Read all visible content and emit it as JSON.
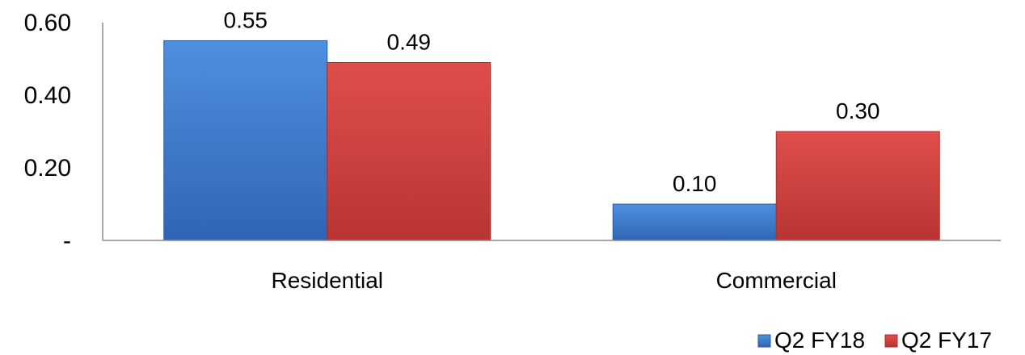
{
  "chart_data": {
    "type": "bar",
    "categories": [
      "Residential",
      "Commercial"
    ],
    "series": [
      {
        "name": "Q2 FY18",
        "values": [
          0.55,
          0.1
        ],
        "color": "#3f7fd0"
      },
      {
        "name": "Q2 FY17",
        "values": [
          0.49,
          0.3
        ],
        "color": "#d84442"
      }
    ],
    "ylim": [
      0,
      0.6
    ],
    "yticks": [
      0,
      0.2,
      0.4,
      0.6
    ],
    "ytick_labels": [
      "-",
      "0.20",
      "0.40",
      "0.60"
    ],
    "data_labels": [
      [
        "0.55",
        "0.10"
      ],
      [
        "0.49",
        "0.30"
      ]
    ],
    "grid": false,
    "legend_position": "bottom-right",
    "title": "",
    "xlabel": "",
    "ylabel": ""
  }
}
